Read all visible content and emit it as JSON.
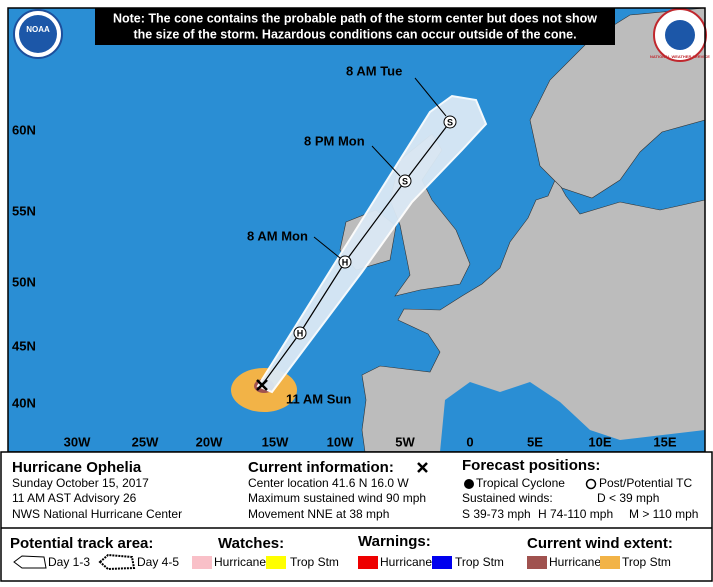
{
  "header": {
    "note_line1": "Note: The cone contains the probable path of the storm center but does not show",
    "note_line2": "the size of the storm. Hazardous conditions can occur outside of the cone."
  },
  "logos": {
    "noaa": "NOAA",
    "nws": "NATIONAL WEATHER SERVICE"
  },
  "map": {
    "latitude_labels": [
      "60N",
      "55N",
      "50N",
      "45N",
      "40N"
    ],
    "longitude_labels": [
      "30W",
      "25W",
      "20W",
      "15W",
      "10W",
      "5W",
      "0",
      "5E",
      "10E",
      "15E"
    ],
    "track_labels": [
      "8 AM Tue",
      "8 PM Mon",
      "8 AM Mon",
      "11 AM Sun"
    ],
    "forecast_markers": [
      "S",
      "S",
      "H",
      "H"
    ]
  },
  "storm": {
    "name": "Hurricane Ophelia",
    "date": "Sunday October 15, 2017",
    "advisory": "11 AM AST Advisory 26",
    "center": "NWS National Hurricane Center"
  },
  "current_information": {
    "title": "Current information:",
    "lines": [
      "Center location 41.6 N 16.0 W",
      "Maximum sustained wind 90 mph",
      "Movement NNE at 38 mph"
    ]
  },
  "forecast_positions": {
    "title": "Forecast positions:",
    "tropical_cyclone": "Tropical Cyclone",
    "post_potential": "Post/Potential TC",
    "sustained_winds": "Sustained winds:",
    "d": "D < 39 mph",
    "s": "S 39-73 mph",
    "h": "H 74-110 mph",
    "m": "M > 110 mph"
  },
  "legend": {
    "track_title": "Potential track area:",
    "day13": "Day 1-3",
    "day45": "Day 4-5",
    "watches": {
      "title": "Watches:",
      "hurricane": "Hurricane",
      "trop_stm": "Trop Stm"
    },
    "warnings": {
      "title": "Warnings:",
      "hurricane": "Hurricane",
      "trop_stm": "Trop Stm"
    },
    "wind_extent": {
      "title": "Current wind extent:",
      "hurricane": "Hurricane",
      "trop_stm": "Trop Stm"
    }
  }
}
